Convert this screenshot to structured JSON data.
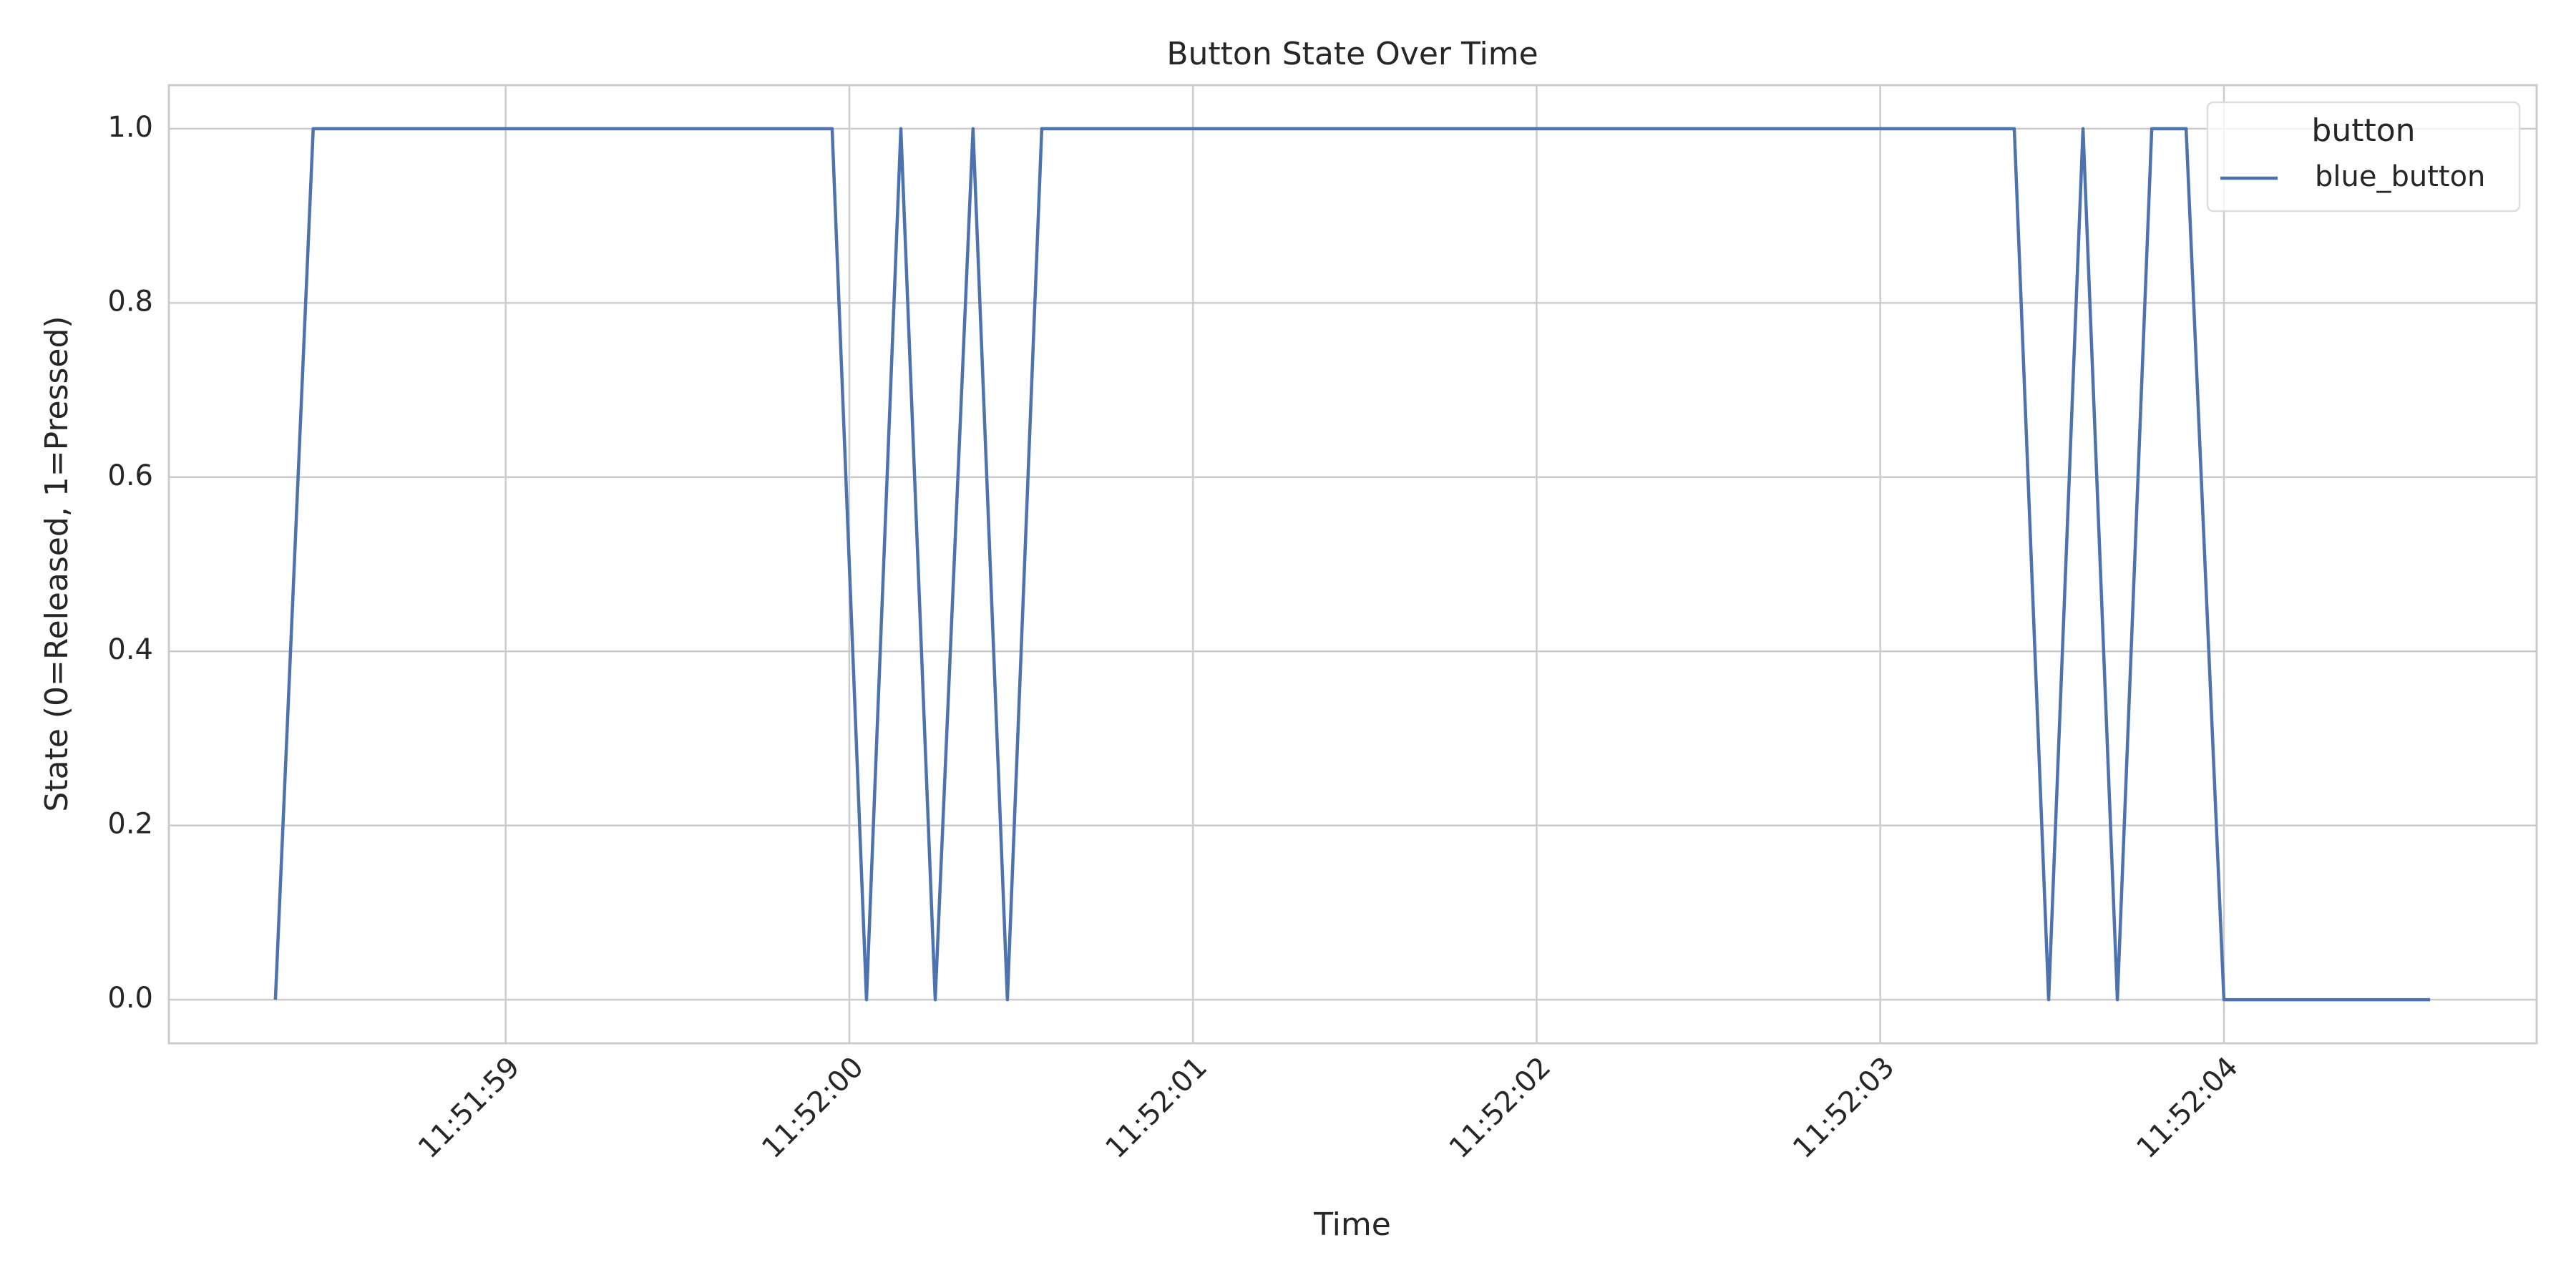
{
  "chart_data": {
    "type": "line",
    "title": "Button State Over Time",
    "x_label": "Time",
    "y_label": "State (0=Released, 1=Pressed)",
    "x": [
      "11:51:58.33",
      "11:51:58.44",
      "11:51:59.95",
      "11:52:00.05",
      "11:52:00.15",
      "11:52:00.25",
      "11:52:00.36",
      "11:52:00.46",
      "11:52:00.56",
      "11:52:03.39",
      "11:52:03.49",
      "11:52:03.59",
      "11:52:03.69",
      "11:52:03.79",
      "11:52:03.89",
      "11:52:04.00",
      "11:52:04.60"
    ],
    "series": [
      {
        "name": "blue_button",
        "color": "#4c72b0",
        "values": [
          0,
          1,
          1,
          0,
          1,
          0,
          1,
          0,
          1,
          1,
          0,
          1,
          0,
          1,
          1,
          0,
          0
        ]
      }
    ],
    "legend_title": "button",
    "legend": "upper right",
    "grid": true,
    "xlim": [
      "11:51:58.02",
      "11:52:04.91"
    ],
    "xticks": [
      "11:51:59",
      "11:52:00",
      "11:52:01",
      "11:52:02",
      "11:52:03",
      "11:52:04"
    ],
    "ylim": [
      -0.05,
      1.05
    ],
    "yticks": [
      {
        "value": 0,
        "label": "0.0"
      },
      {
        "value": 0.2,
        "label": "0.2"
      },
      {
        "value": 0.4,
        "label": "0.4"
      },
      {
        "value": 0.6,
        "label": "0.6"
      },
      {
        "value": 0.8,
        "label": "0.8"
      },
      {
        "value": 1,
        "label": "1.0"
      }
    ]
  }
}
